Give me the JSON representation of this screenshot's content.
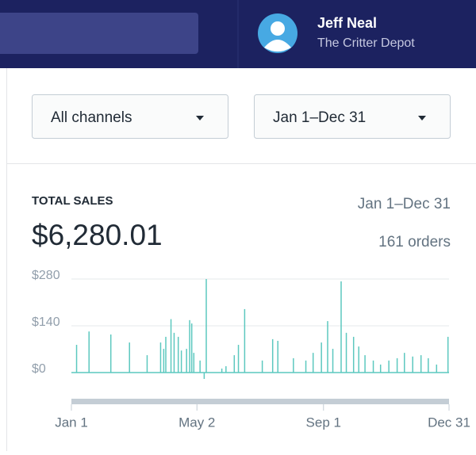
{
  "header": {
    "user_name": "Jeff Neal",
    "store_name": "The Critter Depot"
  },
  "filters": [
    "All channels",
    "Jan 1–Dec 31"
  ],
  "summary": {
    "label": "TOTAL SALES",
    "total": "$6,280.01",
    "range": "Jan 1–Dec 31",
    "orders": "161 orders"
  },
  "chart_data": {
    "type": "spike",
    "color": "#5cc8bf",
    "grid": true,
    "x": [
      6,
      18,
      39,
      57,
      74,
      87,
      90,
      92,
      97,
      100,
      104,
      107,
      112,
      115,
      117,
      119,
      125,
      129,
      131,
      146,
      150,
      158,
      162,
      168,
      185,
      195,
      200,
      215,
      227,
      234,
      242,
      248,
      253,
      261,
      266,
      273,
      278,
      284,
      292,
      299,
      307,
      315,
      322,
      330,
      338,
      345,
      353,
      364
    ],
    "values": [
      83,
      123,
      114,
      90,
      52,
      90,
      71,
      107,
      160,
      119,
      107,
      66,
      71,
      157,
      147,
      59,
      36,
      -19,
      280,
      12,
      19,
      52,
      83,
      190,
      36,
      100,
      95,
      43,
      36,
      59,
      90,
      154,
      71,
      273,
      119,
      107,
      78,
      52,
      36,
      24,
      36,
      43,
      59,
      48,
      52,
      43,
      24,
      107
    ],
    "xlim": [
      1,
      365
    ],
    "ylim": [
      0,
      280
    ],
    "xticks": [
      {
        "value": 1,
        "label": "Jan 1"
      },
      {
        "value": 122,
        "label": "May 2"
      },
      {
        "value": 244,
        "label": "Sep 1"
      },
      {
        "value": 365,
        "label": "Dec 31"
      }
    ],
    "yticks": [
      {
        "value": 0,
        "label": "$0"
      },
      {
        "value": 140,
        "label": "$140"
      },
      {
        "value": 280,
        "label": "$280"
      }
    ]
  }
}
